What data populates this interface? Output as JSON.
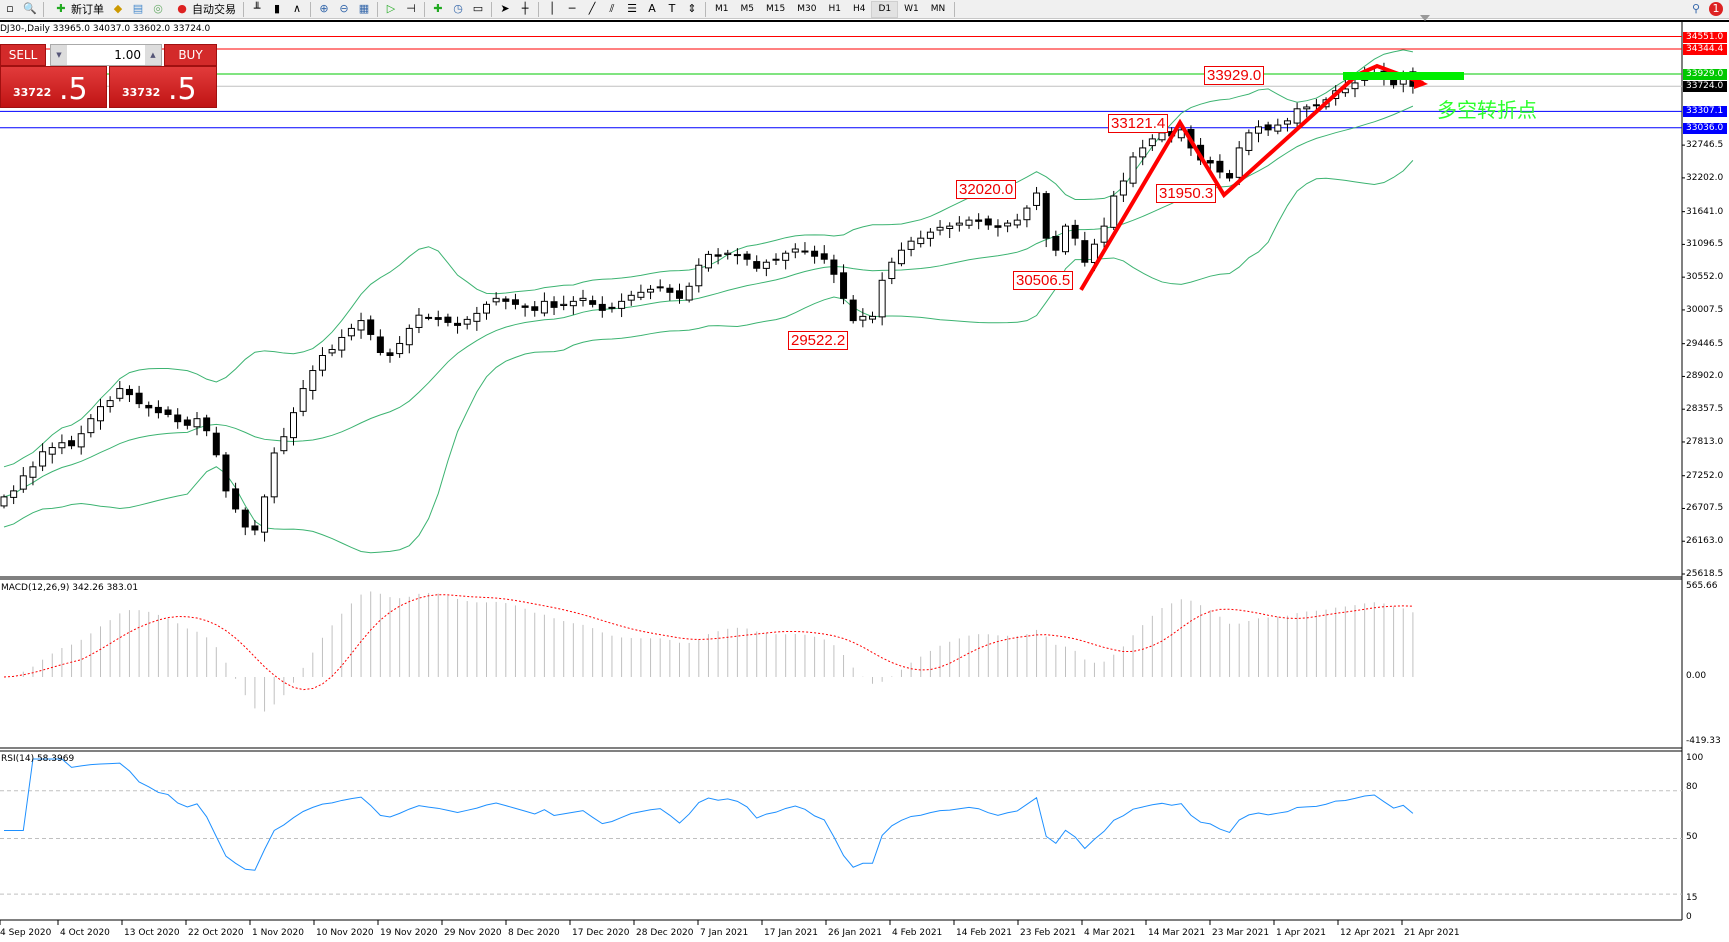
{
  "toolbar": {
    "new_order": "新订单",
    "auto_trading": "自动交易",
    "timeframes": [
      "M1",
      "M5",
      "M15",
      "M30",
      "H1",
      "H4",
      "D1",
      "W1",
      "MN"
    ],
    "selected_timeframe": "D1",
    "notification_count": "1"
  },
  "chart_title": "DJ30-,Daily  33965.0 34037.0 33602.0 33724.0",
  "trade_panel": {
    "sell_label": "SELL",
    "buy_label": "BUY",
    "lot": "1.00",
    "sell_price_small": "33722",
    "sell_price_big": ".5",
    "buy_price_small": "33732",
    "buy_price_big": ".5",
    "color": "#d32a2a"
  },
  "chart_data": {
    "type": "candlestick",
    "symbol": "DJ30-",
    "timeframe": "Daily",
    "last_bar": {
      "open": 33965.0,
      "high": 34037.0,
      "low": 33602.0,
      "close": 33724.0
    },
    "close": [
      26900,
      27000,
      27250,
      27400,
      27650,
      27720,
      27800,
      27750,
      27950,
      28200,
      28400,
      28500,
      28700,
      28600,
      28450,
      28380,
      28300,
      28270,
      28150,
      28090,
      28200,
      28000,
      27600,
      27000,
      26700,
      26400,
      26350,
      26900,
      27630,
      27900,
      28300,
      28700,
      29000,
      29250,
      29350,
      29550,
      29700,
      29830,
      29600,
      29300,
      29250,
      29450,
      29700,
      29920,
      29880,
      29850,
      29800,
      29750,
      29850,
      29950,
      30100,
      30200,
      30150,
      30100,
      30050,
      30000,
      30150,
      30050,
      30100,
      30150,
      30200,
      30100,
      30000,
      30050,
      30150,
      30250,
      30300,
      30350,
      30380,
      30300,
      30200,
      30400,
      30750,
      30930,
      30900,
      30950,
      30920,
      30850,
      30700,
      30800,
      30850,
      30950,
      31020,
      30980,
      30900,
      30850,
      30600,
      30200,
      29830,
      29900,
      29900,
      30500,
      30800,
      31000,
      31150,
      31200,
      31300,
      31380,
      31400,
      31450,
      31500,
      31480,
      31420,
      31380,
      31450,
      31500,
      31700,
      31950,
      31200,
      31000,
      31400,
      31200,
      30800,
      31100,
      31400,
      31900,
      32150,
      32550,
      32700,
      32850,
      32950,
      32900,
      33000,
      32700,
      32500,
      32450,
      32300,
      32200,
      32700,
      32950,
      33050,
      33000,
      33080,
      33150,
      33350,
      33380,
      33400,
      33500,
      33650,
      33680,
      33780,
      33900,
      33950,
      33850,
      33750,
      33850,
      33724
    ],
    "x_tick_labels": [
      "4 Sep 2020",
      "4 Oct 2020",
      "13 Oct 2020",
      "22 Oct 2020",
      "1 Nov 2020",
      "10 Nov 2020",
      "19 Nov 2020",
      "29 Nov 2020",
      "8 Dec 2020",
      "17 Dec 2020",
      "28 Dec 2020",
      "7 Jan 2021",
      "17 Jan 2021",
      "26 Jan 2021",
      "4 Feb 2021",
      "14 Feb 2021",
      "23 Feb 2021",
      "4 Mar 2021",
      "14 Mar 2021",
      "23 Mar 2021",
      "1 Apr 2021",
      "12 Apr 2021",
      "21 Apr 2021"
    ],
    "y_tick_labels": [
      "32746.5",
      "32202.0",
      "31641.0",
      "31096.5",
      "30552.0",
      "30007.5",
      "29446.5",
      "28902.0",
      "28357.5",
      "27813.0",
      "27252.0",
      "26707.5",
      "26163.0",
      "25618.5"
    ],
    "ylim": [
      25618.5,
      34600
    ],
    "levels": [
      {
        "price": "34551.0",
        "color": "#ff0000"
      },
      {
        "price": "34344.4",
        "color": "#ff0000"
      },
      {
        "price": "33929.0",
        "color": "#00c800"
      },
      {
        "price": "33724.0",
        "color": "#000000"
      },
      {
        "price": "33307.1",
        "color": "#0000ff"
      },
      {
        "price": "33036.0",
        "color": "#0000ff"
      }
    ],
    "annotations": [
      "33929.0",
      "33121.4",
      "32020.0",
      "31950.3",
      "30506.5",
      "29522.2"
    ],
    "annotation_text": "多空转折点",
    "zigzag": [
      30506.5,
      33121.4,
      31950.3,
      33929.0
    ],
    "bollinger": {
      "period": 20,
      "deviation": 2,
      "color": "#3cb371"
    },
    "macd": {
      "label": "MACD(12,26,9) 342.26 383.01",
      "ylim": [
        -419.33,
        565.66
      ],
      "ticks": [
        "565.66",
        "0.00",
        "-419.33"
      ],
      "histogram_color": "#c0c0c0",
      "signal_color": "#ff0000"
    },
    "rsi": {
      "label": "RSI(14) 58.3969",
      "ylim": [
        0,
        100
      ],
      "ticks": [
        "100",
        "80",
        "50",
        "15",
        "0"
      ],
      "color": "#1e90ff"
    }
  }
}
